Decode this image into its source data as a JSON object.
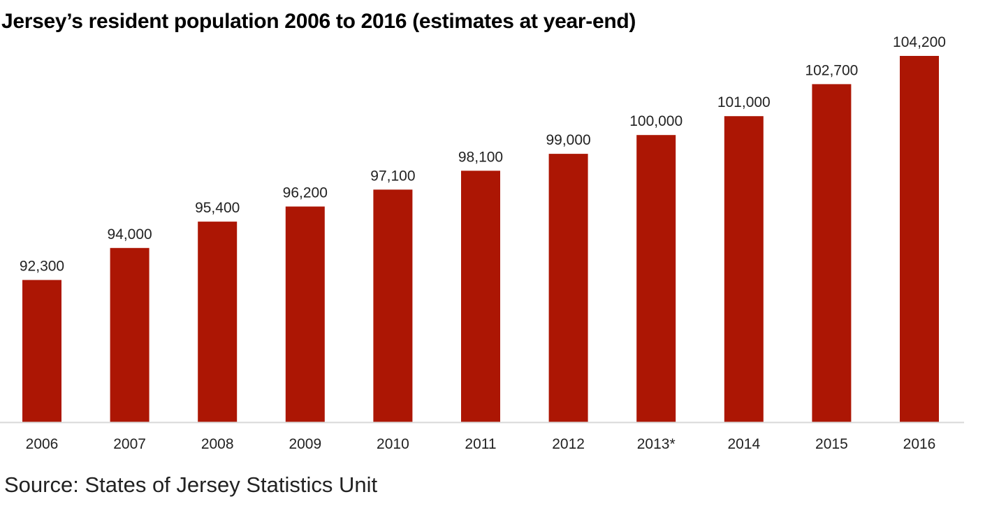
{
  "chart_data": {
    "type": "bar",
    "title": "Jersey’s resident population 2006 to 2016 (estimates at year-end)",
    "categories": [
      "2006",
      "2007",
      "2008",
      "2009",
      "2010",
      "2011",
      "2012",
      "2013*",
      "2014",
      "2015",
      "2016"
    ],
    "values": [
      92300,
      94000,
      95400,
      96200,
      97100,
      98100,
      99000,
      100000,
      101000,
      102700,
      104200
    ],
    "value_labels": [
      "92,300",
      "94,000",
      "95,400",
      "96,200",
      "97,100",
      "98,100",
      "99,000",
      "100,000",
      "101,000",
      "102,700",
      "104,200"
    ],
    "xlabel": "",
    "ylabel": "",
    "ylim": [
      84750,
      104200
    ],
    "grid": false,
    "legend": "none",
    "bar_color": "#ac1604",
    "axis_color": "#d8d8d8"
  },
  "source": "Source: States of Jersey Statistics Unit"
}
